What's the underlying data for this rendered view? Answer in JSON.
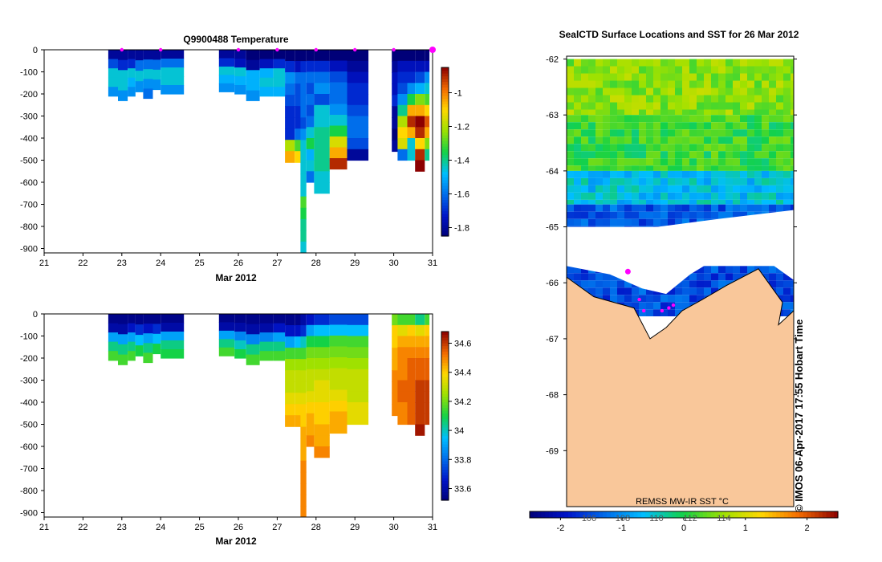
{
  "chart_data": [
    {
      "type": "heatmap",
      "title": "Q9900488  Temperature",
      "xlabel": "Mar 2012",
      "ylabel": "",
      "xlim": [
        21,
        31
      ],
      "ylim": [
        -920,
        0
      ],
      "x_ticks": [
        "21",
        "22",
        "23",
        "24",
        "25",
        "26",
        "27",
        "28",
        "29",
        "30",
        "31"
      ],
      "y_ticks": [
        "0",
        "-100",
        "-200",
        "-300",
        "-400",
        "-500",
        "-600",
        "-700",
        "-800",
        "-900"
      ],
      "colorbar": {
        "min": -1.85,
        "max": -0.85,
        "ticks": [
          "-1",
          "-1.2",
          "-1.4",
          "-1.6",
          "-1.8"
        ],
        "tick_values": [
          -1,
          -1.2,
          -1.4,
          -1.6,
          -1.8
        ]
      },
      "markers": [
        23,
        24,
        26,
        27,
        28,
        29,
        30,
        31
      ],
      "profiles": [
        {
          "day": 22.65,
          "day_end": 22.9,
          "bottom": -210,
          "values": [
            -1.8,
            -1.65,
            -1.45,
            -1.45,
            -1.55
          ]
        },
        {
          "day": 22.9,
          "day_end": 23.15,
          "bottom": -230,
          "values": [
            -1.8,
            -1.7,
            -1.45,
            -1.45,
            -1.55
          ]
        },
        {
          "day": 23.15,
          "day_end": 23.35,
          "bottom": -210,
          "values": [
            -1.8,
            -1.7,
            -1.45,
            -1.5,
            -1.55
          ]
        },
        {
          "day": 23.35,
          "day_end": 23.55,
          "bottom": -190,
          "values": [
            -1.8,
            -1.6,
            -1.45,
            -1.55
          ]
        },
        {
          "day": 23.55,
          "day_end": 23.8,
          "bottom": -220,
          "values": [
            -1.8,
            -1.6,
            -1.45,
            -1.55,
            -1.6
          ]
        },
        {
          "day": 23.8,
          "day_end": 24.0,
          "bottom": -180,
          "values": [
            -1.8,
            -1.6,
            -1.45,
            -1.55
          ]
        },
        {
          "day": 24.0,
          "day_end": 24.6,
          "bottom": -200,
          "values": [
            -1.8,
            -1.6,
            -1.45,
            -1.45,
            -1.55
          ]
        },
        {
          "day": 25.5,
          "day_end": 25.9,
          "bottom": -190,
          "values": [
            -1.8,
            -1.7,
            -1.45,
            -1.5,
            -1.55
          ]
        },
        {
          "day": 25.9,
          "day_end": 26.2,
          "bottom": -200,
          "values": [
            -1.8,
            -1.75,
            -1.45,
            -1.5,
            -1.55
          ]
        },
        {
          "day": 26.2,
          "day_end": 26.55,
          "bottom": -230,
          "values": [
            -1.85,
            -1.8,
            -1.5,
            -1.5,
            -1.55
          ]
        },
        {
          "day": 26.55,
          "day_end": 26.9,
          "bottom": -210,
          "values": [
            -1.85,
            -1.75,
            -1.5,
            -1.45,
            -1.5
          ]
        },
        {
          "day": 26.9,
          "day_end": 27.2,
          "bottom": -210,
          "values": [
            -1.85,
            -1.7,
            -1.45,
            -1.45,
            -1.5
          ]
        },
        {
          "day": 27.2,
          "day_end": 27.45,
          "bottom": -510,
          "values": [
            -1.85,
            -1.7,
            -1.55,
            -1.6,
            -1.65,
            -1.7,
            -1.7,
            -1.7,
            -1.2,
            -1.05
          ]
        },
        {
          "day": 27.45,
          "day_end": 27.6,
          "bottom": -510,
          "values": [
            -1.85,
            -1.75,
            -1.6,
            -1.65,
            -1.65,
            -1.7,
            -1.7,
            -1.6,
            -1.3,
            -1.1
          ]
        },
        {
          "day": 27.6,
          "day_end": 27.75,
          "bottom": -920,
          "values": [
            -1.85,
            -1.7,
            -1.6,
            -1.6,
            -1.6,
            -1.6,
            -1.65,
            -1.55,
            -1.45,
            -1.45,
            -1.45,
            -1.45,
            -1.45,
            -1.3,
            -1.35,
            -1.4,
            -1.4,
            -1.45
          ]
        },
        {
          "day": 27.75,
          "day_end": 27.95,
          "bottom": -600,
          "values": [
            -1.85,
            -1.7,
            -1.6,
            -1.65,
            -1.6,
            -1.65,
            -1.6,
            -1.45,
            -1.35,
            -1.5,
            -1.45,
            -1.6
          ]
        },
        {
          "day": 27.95,
          "day_end": 28.35,
          "bottom": -650,
          "values": [
            -1.85,
            -1.7,
            -1.6,
            -1.55,
            -1.65,
            -1.45,
            -1.45,
            -1.4,
            -1.4,
            -1.4,
            -1.4,
            -1.45,
            -1.45
          ]
        },
        {
          "day": 28.35,
          "day_end": 28.8,
          "bottom": -540,
          "values": [
            -1.85,
            -1.75,
            -1.65,
            -1.6,
            -1.6,
            -1.55,
            -1.45,
            -1.35,
            -1.15,
            -1.05,
            -0.9
          ]
        },
        {
          "day": 28.8,
          "day_end": 29.35,
          "bottom": -500,
          "values": [
            -1.85,
            -1.8,
            -1.75,
            -1.7,
            -1.7,
            -1.65,
            -1.6,
            -1.6,
            -1.65,
            -1.8
          ]
        },
        {
          "day": 29.95,
          "day_end": 30.1,
          "bottom": -460,
          "values": [
            -1.85,
            -1.8,
            -1.75,
            -1.75,
            -1.7,
            -1.8,
            -1.8,
            -1.85,
            -1.8
          ]
        },
        {
          "day": 30.1,
          "day_end": 30.35,
          "bottom": -500,
          "values": [
            -1.85,
            -1.75,
            -1.7,
            -1.65,
            -1.55,
            -1.4,
            -1.2,
            -1.1,
            -1.15,
            -1.6
          ]
        },
        {
          "day": 30.35,
          "day_end": 30.55,
          "bottom": -500,
          "values": [
            -1.85,
            -1.75,
            -1.7,
            -1.55,
            -1.35,
            -1.05,
            -0.9,
            -1.05,
            -1.45,
            -1.45
          ]
        },
        {
          "day": 30.55,
          "day_end": 30.8,
          "bottom": -550,
          "values": [
            -1.85,
            -1.75,
            -1.65,
            -1.5,
            -1.25,
            -1.05,
            -0.85,
            -0.9,
            -1.1,
            -0.9,
            -0.85
          ]
        },
        {
          "day": 30.8,
          "day_end": 30.92,
          "bottom": -500,
          "values": [
            -1.85,
            -1.75,
            -1.55,
            -1.45,
            -1.3,
            -1.1,
            -0.95,
            -1.05,
            -1.25,
            -1.4
          ]
        }
      ]
    },
    {
      "type": "heatmap",
      "title": "",
      "xlabel": "Mar 2012",
      "ylabel": "",
      "xlim": [
        21,
        31
      ],
      "ylim": [
        -920,
        0
      ],
      "x_ticks": [
        "21",
        "22",
        "23",
        "24",
        "25",
        "26",
        "27",
        "28",
        "29",
        "30",
        "31"
      ],
      "y_ticks": [
        "0",
        "-100",
        "-200",
        "-300",
        "-400",
        "-500",
        "-600",
        "-700",
        "-800",
        "-900"
      ],
      "colorbar": {
        "min": 33.52,
        "max": 34.68,
        "ticks": [
          "34.6",
          "34.4",
          "34.2",
          "34",
          "33.8",
          "33.6"
        ],
        "tick_values": [
          34.6,
          34.4,
          34.2,
          34.0,
          33.8,
          33.6
        ]
      },
      "profiles": [
        {
          "day": 22.65,
          "day_end": 22.9,
          "bottom": -210,
          "values": [
            33.55,
            33.6,
            33.9,
            34.05,
            34.15
          ]
        },
        {
          "day": 22.9,
          "day_end": 23.15,
          "bottom": -230,
          "values": [
            33.55,
            33.6,
            33.9,
            34.05,
            34.15
          ]
        },
        {
          "day": 23.15,
          "day_end": 23.35,
          "bottom": -210,
          "values": [
            33.55,
            33.65,
            33.9,
            34.05,
            34.15
          ]
        },
        {
          "day": 23.35,
          "day_end": 23.55,
          "bottom": -190,
          "values": [
            33.55,
            33.7,
            33.95,
            34.1
          ]
        },
        {
          "day": 23.55,
          "day_end": 23.8,
          "bottom": -220,
          "values": [
            33.55,
            33.65,
            33.9,
            34.05,
            34.15
          ]
        },
        {
          "day": 23.8,
          "day_end": 24.0,
          "bottom": -180,
          "values": [
            33.55,
            33.7,
            33.95,
            34.1
          ]
        },
        {
          "day": 24.0,
          "day_end": 24.6,
          "bottom": -200,
          "values": [
            33.55,
            33.6,
            33.9,
            34.05,
            34.1
          ]
        },
        {
          "day": 25.5,
          "day_end": 25.9,
          "bottom": -190,
          "values": [
            33.55,
            33.6,
            33.9,
            34.05,
            34.15
          ]
        },
        {
          "day": 25.9,
          "day_end": 26.2,
          "bottom": -200,
          "values": [
            33.55,
            33.6,
            33.85,
            34.0,
            34.1
          ]
        },
        {
          "day": 26.2,
          "day_end": 26.55,
          "bottom": -230,
          "values": [
            33.55,
            33.6,
            33.85,
            34.05,
            34.15
          ]
        },
        {
          "day": 26.55,
          "day_end": 26.9,
          "bottom": -210,
          "values": [
            33.55,
            33.6,
            33.85,
            34.05,
            34.15
          ]
        },
        {
          "day": 26.9,
          "day_end": 27.2,
          "bottom": -210,
          "values": [
            33.55,
            33.65,
            33.9,
            34.05,
            34.15
          ]
        },
        {
          "day": 27.2,
          "day_end": 27.45,
          "bottom": -510,
          "values": [
            33.55,
            33.65,
            33.9,
            34.15,
            34.25,
            34.3,
            34.3,
            34.35,
            34.4,
            34.45
          ]
        },
        {
          "day": 27.45,
          "day_end": 27.6,
          "bottom": -510,
          "values": [
            33.55,
            33.65,
            33.95,
            34.15,
            34.25,
            34.3,
            34.3,
            34.35,
            34.4,
            34.45
          ]
        },
        {
          "day": 27.6,
          "day_end": 27.75,
          "bottom": -920,
          "values": [
            33.6,
            33.7,
            34.0,
            34.15,
            34.25,
            34.3,
            34.3,
            34.35,
            34.4,
            34.4,
            34.45,
            34.45,
            34.45,
            34.5,
            34.5,
            34.5,
            34.5,
            34.5
          ]
        },
        {
          "day": 27.75,
          "day_end": 27.95,
          "bottom": -600,
          "values": [
            33.65,
            33.9,
            34.1,
            34.2,
            34.25,
            34.3,
            34.3,
            34.35,
            34.4,
            34.45,
            34.45,
            34.5
          ]
        },
        {
          "day": 27.95,
          "day_end": 28.35,
          "bottom": -650,
          "values": [
            33.7,
            33.95,
            34.1,
            34.2,
            34.25,
            34.3,
            34.35,
            34.35,
            34.4,
            34.4,
            34.45,
            34.45,
            34.5
          ]
        },
        {
          "day": 28.35,
          "day_end": 28.8,
          "bottom": -540,
          "values": [
            33.75,
            33.95,
            34.15,
            34.2,
            34.25,
            34.3,
            34.3,
            34.35,
            34.4,
            34.45,
            34.45
          ]
        },
        {
          "day": 28.8,
          "day_end": 29.35,
          "bottom": -500,
          "values": [
            33.75,
            33.95,
            34.15,
            34.2,
            34.25,
            34.3,
            34.3,
            34.3,
            34.35,
            34.35
          ]
        },
        {
          "day": 29.95,
          "day_end": 30.1,
          "bottom": -460,
          "values": [
            34.2,
            34.4,
            34.4,
            34.45,
            34.45,
            34.5,
            34.5,
            34.5,
            34.5
          ]
        },
        {
          "day": 30.1,
          "day_end": 30.35,
          "bottom": -500,
          "values": [
            34.15,
            34.35,
            34.45,
            34.5,
            34.5,
            34.5,
            34.55,
            34.55,
            34.5,
            34.5
          ]
        },
        {
          "day": 30.35,
          "day_end": 30.55,
          "bottom": -500,
          "values": [
            34.15,
            34.4,
            34.45,
            34.5,
            34.55,
            34.55,
            34.55,
            34.55,
            34.55,
            34.55
          ]
        },
        {
          "day": 30.55,
          "day_end": 30.8,
          "bottom": -550,
          "values": [
            34.05,
            34.35,
            34.45,
            34.5,
            34.55,
            34.55,
            34.6,
            34.6,
            34.6,
            34.6,
            34.65
          ]
        },
        {
          "day": 30.8,
          "day_end": 30.92,
          "bottom": -500,
          "values": [
            34.15,
            34.4,
            34.45,
            34.5,
            34.55,
            34.55,
            34.6,
            34.6,
            34.6,
            34.6
          ]
        }
      ]
    },
    {
      "type": "map",
      "title": "SealCTD Surface Locations and SST for 26 Mar 2012",
      "ylim": [
        -70,
        -61.95
      ],
      "xlim": [
        105.0,
        115.0
      ],
      "y_ticks": [
        "-62",
        "-63",
        "-64",
        "-65",
        "-66",
        "-67",
        "-68",
        "-69"
      ],
      "lon_ticks": [
        "106",
        "108",
        "110",
        "112",
        "114"
      ],
      "colorbar": {
        "label": "REMSS MW-IR SST °C",
        "min": -2.5,
        "max": 2.5,
        "ticks": [
          "-2",
          "-1",
          "0",
          "1",
          "2"
        ],
        "tick_values": [
          -2,
          -1,
          0,
          1,
          2
        ]
      },
      "credit": "© IMOS 06-Apr-2017 17:55 Hobart Time",
      "colors": {
        "land": "#f9c79a",
        "ice": "#ffffff"
      },
      "sst_bands": [
        {
          "lat_top": -62.0,
          "lat_bottom": -63.0,
          "sst": 0.55
        },
        {
          "lat_top": -63.0,
          "lat_bottom": -64.0,
          "sst": 0.15
        },
        {
          "lat_top": -64.0,
          "lat_bottom": -64.6,
          "sst": -0.6
        },
        {
          "lat_top": -64.6,
          "lat_bottom": -65.0,
          "sst": -1.4
        },
        {
          "lat_top": -65.7,
          "lat_bottom": -66.6,
          "sst": -1.5
        }
      ],
      "locations": [
        {
          "lon": 107.7,
          "lat": -65.8
        },
        {
          "lon": 108.2,
          "lat": -66.3
        },
        {
          "lon": 108.4,
          "lat": -66.5
        },
        {
          "lon": 109.2,
          "lat": -66.5
        },
        {
          "lon": 109.5,
          "lat": -66.45
        },
        {
          "lon": 109.7,
          "lat": -66.4
        }
      ]
    }
  ]
}
